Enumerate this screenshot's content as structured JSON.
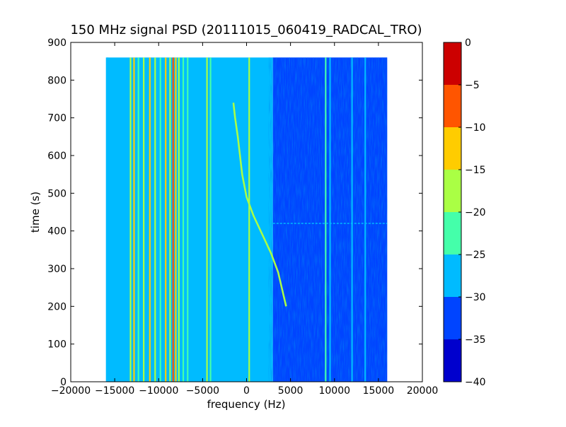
{
  "chart_data": {
    "type": "heatmap",
    "title": "150 MHz signal PSD (20111015_060419_RADCAL_TRO)",
    "xlabel": "frequency (Hz)",
    "ylabel": "time (s)",
    "xlim": [
      -20000,
      20000
    ],
    "ylim": [
      0,
      900
    ],
    "xticks": [
      -20000,
      -15000,
      -10000,
      -5000,
      0,
      5000,
      10000,
      15000,
      20000
    ],
    "yticks": [
      0,
      100,
      200,
      300,
      400,
      500,
      600,
      700,
      800,
      900
    ],
    "x_tick_labels": [
      "−20000",
      "−15000",
      "−10000",
      "−5000",
      "0",
      "5000",
      "10000",
      "15000",
      "20000"
    ],
    "y_tick_labels": [
      "0",
      "100",
      "200",
      "300",
      "400",
      "500",
      "600",
      "700",
      "800",
      "900"
    ],
    "data_extent": {
      "freq_range_hz": [
        -16000,
        16000
      ],
      "time_range_s": [
        0,
        860
      ]
    },
    "colorbar": {
      "levels": [
        -40,
        -35,
        -30,
        -25,
        -20,
        -15,
        -10,
        -5,
        0
      ],
      "tick_labels": [
        "−40",
        "−35",
        "−30",
        "−25",
        "−20",
        "−15",
        "−10",
        "−5",
        "0"
      ],
      "colors": [
        "#0000cd",
        "#0044ff",
        "#00bbff",
        "#44ffaa",
        "#aaff44",
        "#ffcc00",
        "#ff5500",
        "#cc0000"
      ]
    },
    "background_level_by_frequency": [
      {
        "freq_range_hz": [
          -16000,
          3000
        ],
        "level_db": -27.5
      },
      {
        "freq_range_hz": [
          3000,
          16000
        ],
        "level_db": -32.5
      }
    ],
    "vertical_lines": [
      {
        "freq_hz": -15800,
        "level_db": -27.5
      },
      {
        "freq_hz": -13200,
        "level_db": -17.5
      },
      {
        "freq_hz": -12800,
        "level_db": -12.5
      },
      {
        "freq_hz": -12300,
        "level_db": -22.5
      },
      {
        "freq_hz": -11700,
        "level_db": -17.5
      },
      {
        "freq_hz": -11000,
        "level_db": -12.5
      },
      {
        "freq_hz": -10400,
        "level_db": -17.5
      },
      {
        "freq_hz": -9800,
        "level_db": -22.5
      },
      {
        "freq_hz": -9200,
        "level_db": -12.5
      },
      {
        "freq_hz": -8700,
        "level_db": -17.5
      },
      {
        "freq_hz": -8350,
        "level_db": -7.5
      },
      {
        "freq_hz": -8050,
        "level_db": -12.5
      },
      {
        "freq_hz": -7700,
        "level_db": -17.5
      },
      {
        "freq_hz": -7200,
        "level_db": -22.5
      },
      {
        "freq_hz": -6700,
        "level_db": -22.5
      },
      {
        "freq_hz": -4500,
        "level_db": -17.5
      },
      {
        "freq_hz": -4100,
        "level_db": -22.5
      },
      {
        "freq_hz": 300,
        "level_db": -17.5
      },
      {
        "freq_hz": 9000,
        "level_db": -22.5
      },
      {
        "freq_hz": 9500,
        "level_db": -27.5
      },
      {
        "freq_hz": 12000,
        "level_db": -27.5
      },
      {
        "freq_hz": 13500,
        "level_db": -27.5
      }
    ],
    "drifting_signal": {
      "level_db": -17.5,
      "points": [
        {
          "freq_hz": -1500,
          "time_s": 740
        },
        {
          "freq_hz": -1300,
          "time_s": 700
        },
        {
          "freq_hz": -1000,
          "time_s": 650
        },
        {
          "freq_hz": -500,
          "time_s": 550
        },
        {
          "freq_hz": 0,
          "time_s": 490
        },
        {
          "freq_hz": 800,
          "time_s": 440
        },
        {
          "freq_hz": 1800,
          "time_s": 390
        },
        {
          "freq_hz": 2800,
          "time_s": 340
        },
        {
          "freq_hz": 3600,
          "time_s": 290
        },
        {
          "freq_hz": 4100,
          "time_s": 240
        },
        {
          "freq_hz": 4500,
          "time_s": 200
        }
      ]
    },
    "horizontal_feature": {
      "time_s": 420,
      "freq_range_hz": [
        3000,
        16000
      ],
      "level_db": -27.5
    }
  }
}
